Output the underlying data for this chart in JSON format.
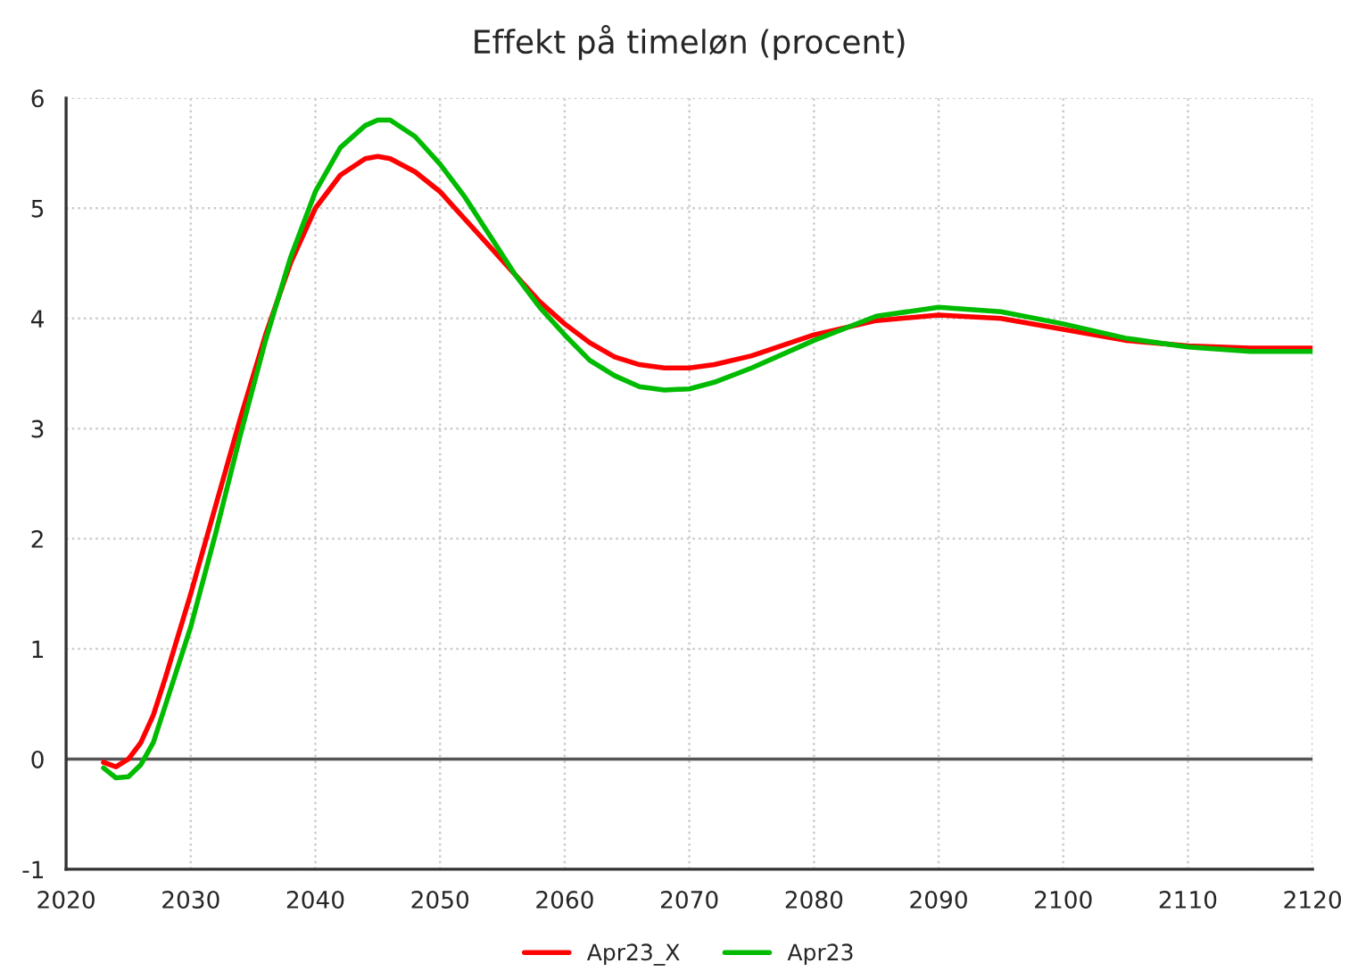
{
  "chart_data": {
    "type": "line",
    "title": "Effekt på timeløn (procent)",
    "xlim": [
      2020,
      2120
    ],
    "xticks": [
      2020,
      2030,
      2040,
      2050,
      2060,
      2070,
      2080,
      2090,
      2100,
      2110,
      2120
    ],
    "ylim": [
      -1,
      6
    ],
    "yticks": [
      -1,
      0,
      1,
      2,
      3,
      4,
      5,
      6
    ],
    "grid": true,
    "legend": "bottom",
    "line_style": "solid",
    "marker": "none",
    "ref_lines": [
      {
        "axis": "y",
        "value": 0,
        "color": "#555555"
      }
    ],
    "x": [
      2023,
      2024,
      2025,
      2026,
      2027,
      2028,
      2030,
      2032,
      2034,
      2036,
      2038,
      2040,
      2042,
      2044,
      2045,
      2046,
      2048,
      2050,
      2052,
      2054,
      2056,
      2058,
      2060,
      2062,
      2064,
      2066,
      2068,
      2070,
      2072,
      2075,
      2080,
      2085,
      2090,
      2095,
      2100,
      2105,
      2110,
      2115,
      2120
    ],
    "series": [
      {
        "name": "Apr23_X",
        "color": "#ff0000",
        "values": [
          -0.03,
          -0.07,
          0.0,
          0.15,
          0.4,
          0.75,
          1.5,
          2.3,
          3.1,
          3.85,
          4.5,
          5.0,
          5.3,
          5.45,
          5.47,
          5.45,
          5.33,
          5.15,
          4.9,
          4.65,
          4.4,
          4.15,
          3.95,
          3.78,
          3.65,
          3.58,
          3.55,
          3.55,
          3.58,
          3.66,
          3.85,
          3.98,
          4.03,
          4.0,
          3.9,
          3.8,
          3.75,
          3.73,
          3.73
        ]
      },
      {
        "name": "Apr23",
        "color": "#00bb00",
        "values": [
          -0.08,
          -0.17,
          -0.16,
          -0.05,
          0.15,
          0.5,
          1.2,
          2.05,
          2.95,
          3.8,
          4.55,
          5.15,
          5.55,
          5.75,
          5.8,
          5.8,
          5.65,
          5.4,
          5.1,
          4.75,
          4.4,
          4.1,
          3.85,
          3.62,
          3.48,
          3.38,
          3.35,
          3.36,
          3.42,
          3.55,
          3.8,
          4.02,
          4.1,
          4.06,
          3.95,
          3.82,
          3.74,
          3.7,
          3.7
        ]
      }
    ]
  }
}
